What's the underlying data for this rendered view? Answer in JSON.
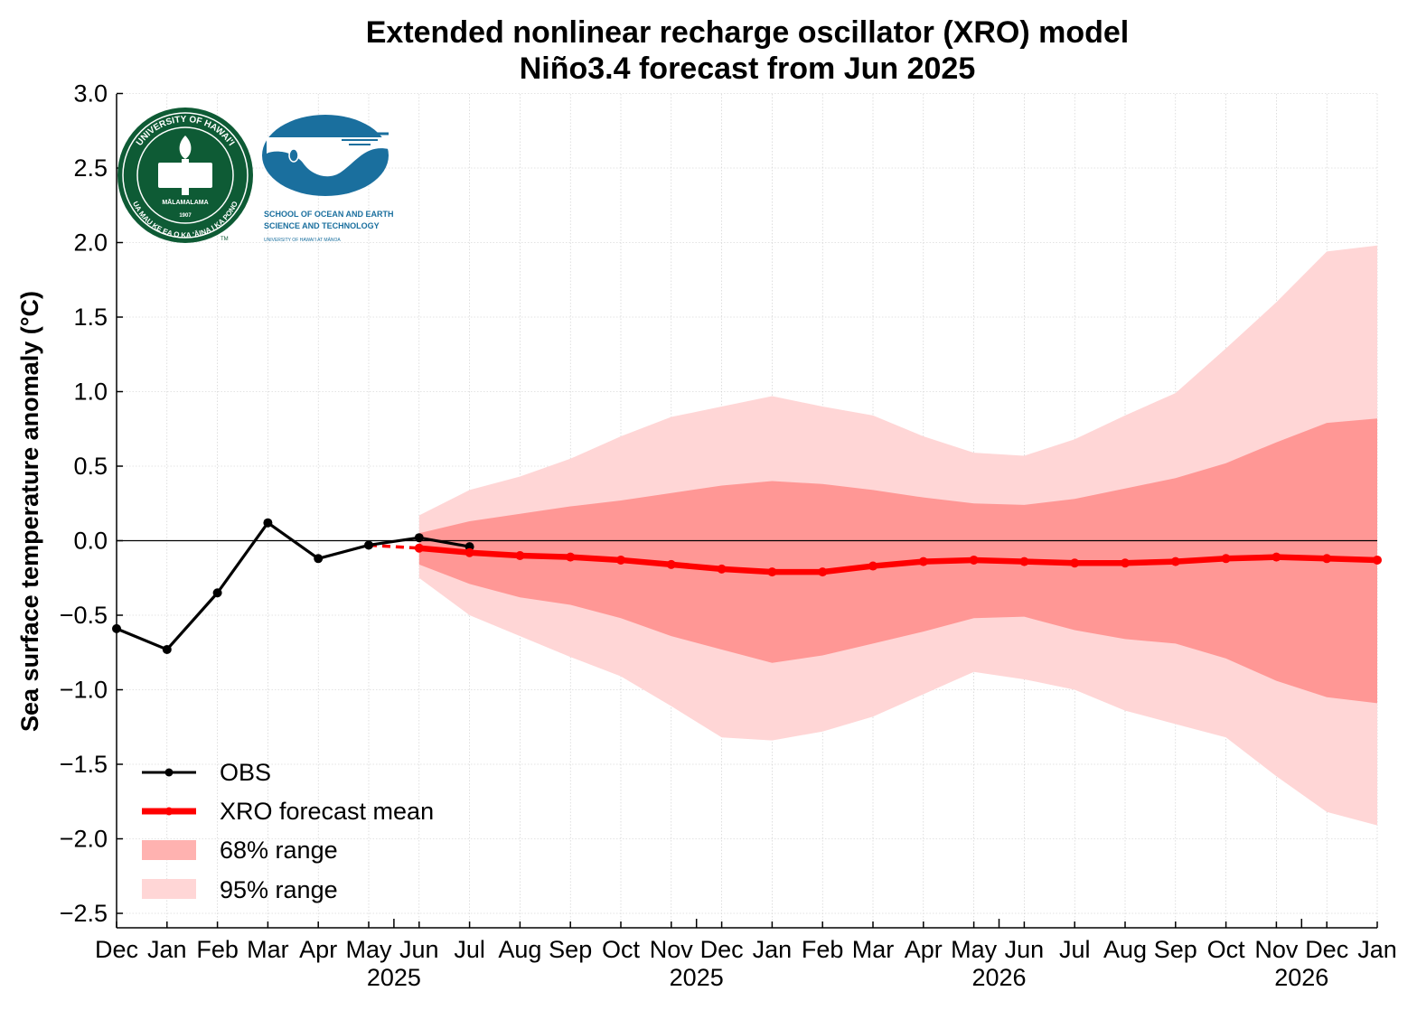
{
  "chart_data": {
    "type": "line",
    "title": [
      "Extended nonlinear recharge oscillator (XRO) model",
      "Niño3.4 forecast from Jun 2025"
    ],
    "ylabel": "Sea surface temperature anomaly (°C)",
    "ylim": [
      -2.6,
      3.0
    ],
    "yticks": [
      "3.0",
      "2.5",
      "2.0",
      "1.5",
      "1.0",
      "0.5",
      "0.0",
      "−0.5",
      "−1.0",
      "−1.5",
      "−2.0",
      "−2.5"
    ],
    "ytick_values": [
      3.0,
      2.5,
      2.0,
      1.5,
      1.0,
      0.5,
      0.0,
      -0.5,
      -1.0,
      -1.5,
      -2.0,
      -2.5
    ],
    "xlim": [
      "2024-12",
      "2027-01"
    ],
    "x_month_labels": [
      "Dec",
      "Jan",
      "Feb",
      "Mar",
      "Apr",
      "May",
      "Jun",
      "Jul",
      "Aug",
      "Sep",
      "Oct",
      "Nov",
      "Dec",
      "Jan",
      "Feb",
      "Mar",
      "Apr",
      "May",
      "Jun",
      "Jul",
      "Aug",
      "Sep",
      "Oct",
      "Nov",
      "Dec",
      "Jan"
    ],
    "x_year_labels": [
      {
        "label": "2025",
        "at": "2025-06"
      },
      {
        "label": "2025",
        "at": "2025-12"
      },
      {
        "label": "2026",
        "at": "2026-06"
      },
      {
        "label": "2026",
        "at": "2026-12"
      }
    ],
    "grid": true,
    "zero_line": true,
    "legend_placement": "lower-left",
    "series": [
      {
        "name": "OBS",
        "color": "#000000",
        "x": [
          "2024-12",
          "2025-01",
          "2025-02",
          "2025-03",
          "2025-04",
          "2025-05",
          "2025-06",
          "2025-07"
        ],
        "values": [
          -0.59,
          -0.73,
          -0.35,
          0.12,
          -0.12,
          -0.03,
          0.02,
          -0.04
        ]
      },
      {
        "name": "XRO forecast mean",
        "color": "#ff0000",
        "x": [
          "2025-06",
          "2025-07",
          "2025-08",
          "2025-09",
          "2025-10",
          "2025-11",
          "2025-12",
          "2026-01",
          "2026-02",
          "2026-03",
          "2026-04",
          "2026-05",
          "2026-06",
          "2026-07",
          "2026-08",
          "2026-09",
          "2026-10",
          "2026-11",
          "2026-12",
          "2027-01"
        ],
        "values": [
          -0.05,
          -0.08,
          -0.1,
          -0.11,
          -0.13,
          -0.16,
          -0.19,
          -0.21,
          -0.21,
          -0.17,
          -0.14,
          -0.13,
          -0.14,
          -0.15,
          -0.15,
          -0.14,
          -0.12,
          -0.11,
          -0.12,
          -0.13
        ],
        "connector_from": {
          "x": "2025-05",
          "value": -0.03
        }
      }
    ],
    "bands": [
      {
        "name": "68% range",
        "color": "#ff9795",
        "x": [
          "2025-06",
          "2025-07",
          "2025-08",
          "2025-09",
          "2025-10",
          "2025-11",
          "2025-12",
          "2026-01",
          "2026-02",
          "2026-03",
          "2026-04",
          "2026-05",
          "2026-06",
          "2026-07",
          "2026-08",
          "2026-09",
          "2026-10",
          "2026-11",
          "2026-12",
          "2027-01"
        ],
        "upper": [
          0.05,
          0.13,
          0.18,
          0.23,
          0.27,
          0.32,
          0.37,
          0.4,
          0.38,
          0.34,
          0.29,
          0.25,
          0.24,
          0.28,
          0.35,
          0.42,
          0.52,
          0.66,
          0.79,
          0.82
        ],
        "lower": [
          -0.16,
          -0.29,
          -0.38,
          -0.43,
          -0.52,
          -0.64,
          -0.73,
          -0.82,
          -0.77,
          -0.69,
          -0.61,
          -0.52,
          -0.51,
          -0.6,
          -0.66,
          -0.69,
          -0.79,
          -0.94,
          -1.05,
          -1.09
        ]
      },
      {
        "name": "95% range",
        "color": "#ffd6d6",
        "x": [
          "2025-06",
          "2025-07",
          "2025-08",
          "2025-09",
          "2025-10",
          "2025-11",
          "2025-12",
          "2026-01",
          "2026-02",
          "2026-03",
          "2026-04",
          "2026-05",
          "2026-06",
          "2026-07",
          "2026-08",
          "2026-09",
          "2026-10",
          "2026-11",
          "2026-12",
          "2027-01"
        ],
        "upper": [
          0.17,
          0.34,
          0.43,
          0.55,
          0.7,
          0.83,
          0.9,
          0.97,
          0.9,
          0.84,
          0.7,
          0.59,
          0.57,
          0.68,
          0.84,
          0.99,
          1.29,
          1.6,
          1.94,
          1.98
        ],
        "lower": [
          -0.25,
          -0.5,
          -0.64,
          -0.78,
          -0.91,
          -1.11,
          -1.32,
          -1.34,
          -1.28,
          -1.18,
          -1.03,
          -0.88,
          -0.93,
          -1.0,
          -1.14,
          -1.23,
          -1.32,
          -1.58,
          -1.82,
          -1.91
        ]
      }
    ],
    "legend": [
      {
        "label": "OBS",
        "kind": "line-marker",
        "color": "#000000"
      },
      {
        "label": "XRO forecast mean",
        "kind": "line-marker-thick",
        "color": "#ff0000"
      },
      {
        "label": "68% range",
        "kind": "patch",
        "color": "#ffb2b0"
      },
      {
        "label": "95% range",
        "kind": "patch",
        "color": "#ffd6d6"
      }
    ]
  },
  "logos": {
    "uh_ring_text": "UNIVERSITY OF HAWAI'I",
    "uh_motto": "UA MAU KE EA O KA 'ĀINA I KA PONO",
    "uh_center": "MĀLAMALAMA",
    "uh_year": "1907",
    "uh_tm": "TM",
    "soest_line1": "SCHOOL OF OCEAN AND EARTH",
    "soest_line2": "SCIENCE AND TECHNOLOGY",
    "soest_line3": "UNIVERSITY OF HAWAI'I AT MĀNOA",
    "uh_color": "#0e5b35",
    "soest_color": "#1a6f9e"
  }
}
